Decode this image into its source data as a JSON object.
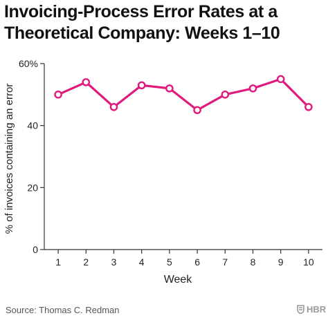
{
  "chart_data": {
    "type": "line",
    "title": "Invoicing-Process Error Rates at a Theoretical Company: Weeks 1–10",
    "xlabel": "Week",
    "ylabel": "% of invoices containing an error",
    "x": [
      1,
      2,
      3,
      4,
      5,
      6,
      7,
      8,
      9,
      10
    ],
    "series": [
      {
        "values": [
          50,
          54,
          46,
          53,
          52,
          45,
          50,
          52,
          55,
          46
        ]
      }
    ],
    "ylim": [
      0,
      60
    ],
    "xlim": [
      0.5,
      10.5
    ],
    "y_ticks": [
      0,
      20,
      40,
      60
    ],
    "y_tick_labels": [
      "0",
      "20",
      "40",
      "60%"
    ],
    "x_tick_labels": [
      "1",
      "2",
      "3",
      "4",
      "5",
      "6",
      "7",
      "8",
      "9",
      "10"
    ],
    "grid": false,
    "legend": "none",
    "colors": {
      "series": "#e0197d",
      "axis": "#333333",
      "text": "#222222"
    }
  },
  "footer": {
    "source": "Source: Thomas C. Redman",
    "logo": "HBR"
  }
}
